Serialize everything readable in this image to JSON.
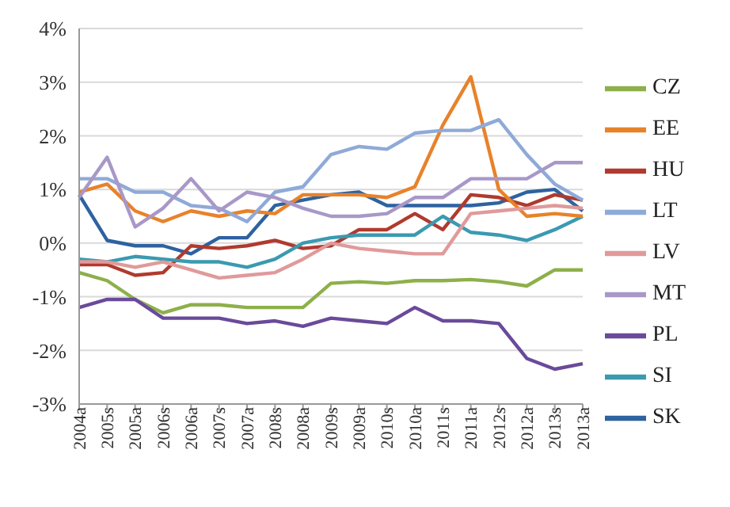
{
  "chart_data": {
    "type": "line",
    "categories": [
      "2004a",
      "2005s",
      "2005a",
      "2006s",
      "2006a",
      "2007s",
      "2007a",
      "2008s",
      "2008a",
      "2009s",
      "2009a",
      "2010s",
      "2010a",
      "2011s",
      "2011a",
      "2012s",
      "2012a",
      "2013s",
      "2013a"
    ],
    "ylim": [
      -3,
      4
    ],
    "yticks": [
      {
        "value": -3,
        "label": "-3%"
      },
      {
        "value": -2,
        "label": "-2%"
      },
      {
        "value": -1,
        "label": "-1%"
      },
      {
        "value": 0,
        "label": "0%"
      },
      {
        "value": 1,
        "label": "1%"
      },
      {
        "value": 2,
        "label": "2%"
      },
      {
        "value": 3,
        "label": "3%"
      },
      {
        "value": 4,
        "label": "4%"
      }
    ],
    "grid": "y",
    "legend": "right",
    "marker": "none",
    "line_style": "solid",
    "series": [
      {
        "name": "SK",
        "color": "#2e62a0",
        "values": [
          0.9,
          0.05,
          -0.05,
          -0.05,
          -0.2,
          0.1,
          0.1,
          0.7,
          0.8,
          0.9,
          0.95,
          0.7,
          0.7,
          0.7,
          0.7,
          0.75,
          0.95,
          1.0,
          0.6
        ]
      },
      {
        "name": "HU",
        "color": "#b03a2e",
        "values": [
          -0.4,
          -0.4,
          -0.6,
          -0.55,
          -0.05,
          -0.1,
          -0.05,
          0.05,
          -0.1,
          -0.05,
          0.25,
          0.25,
          0.55,
          0.25,
          0.9,
          0.85,
          0.7,
          0.9,
          0.8
        ]
      },
      {
        "name": "CZ",
        "color": "#8db04a",
        "values": [
          -0.55,
          -0.7,
          -1.05,
          -1.3,
          -1.15,
          -1.15,
          -1.2,
          -1.2,
          -1.2,
          -0.75,
          -0.72,
          -0.75,
          -0.7,
          -0.7,
          -0.68,
          -0.72,
          -0.8,
          -0.5,
          -0.5
        ]
      },
      {
        "name": "PL",
        "color": "#6a4a9a",
        "values": [
          -1.2,
          -1.05,
          -1.05,
          -1.4,
          -1.4,
          -1.4,
          -1.5,
          -1.45,
          -1.55,
          -1.4,
          -1.45,
          -1.5,
          -1.2,
          -1.45,
          -1.45,
          -1.5,
          -2.15,
          -2.35,
          -2.25
        ]
      },
      {
        "name": "SI",
        "color": "#3a9ab0",
        "values": [
          -0.3,
          -0.35,
          -0.25,
          -0.3,
          -0.35,
          -0.35,
          -0.45,
          -0.3,
          0.0,
          0.1,
          0.15,
          0.15,
          0.15,
          0.5,
          0.2,
          0.15,
          0.05,
          0.25,
          0.5
        ]
      },
      {
        "name": "EE",
        "color": "#e8822a",
        "values": [
          0.95,
          1.1,
          0.6,
          0.4,
          0.6,
          0.5,
          0.6,
          0.55,
          0.9,
          0.9,
          0.9,
          0.85,
          1.05,
          2.2,
          3.1,
          1.0,
          0.5,
          0.55,
          0.5
        ]
      },
      {
        "name": "LT",
        "color": "#8eaad8",
        "values": [
          1.2,
          1.2,
          0.95,
          0.95,
          0.7,
          0.65,
          0.4,
          0.95,
          1.05,
          1.65,
          1.8,
          1.75,
          2.05,
          2.1,
          2.1,
          2.3,
          1.65,
          1.1,
          0.8
        ]
      },
      {
        "name": "LV",
        "color": "#e09a9a",
        "values": [
          -0.35,
          -0.35,
          -0.45,
          -0.35,
          -0.5,
          -0.65,
          -0.6,
          -0.55,
          -0.3,
          0.0,
          -0.1,
          -0.15,
          -0.2,
          -0.2,
          0.55,
          0.6,
          0.65,
          0.7,
          0.65
        ]
      },
      {
        "name": "MT",
        "color": "#a898c8",
        "values": [
          0.85,
          1.6,
          0.3,
          0.65,
          1.2,
          0.6,
          0.95,
          0.85,
          0.65,
          0.5,
          0.5,
          0.55,
          0.85,
          0.85,
          1.2,
          1.2,
          1.2,
          1.5,
          1.5
        ]
      }
    ]
  }
}
